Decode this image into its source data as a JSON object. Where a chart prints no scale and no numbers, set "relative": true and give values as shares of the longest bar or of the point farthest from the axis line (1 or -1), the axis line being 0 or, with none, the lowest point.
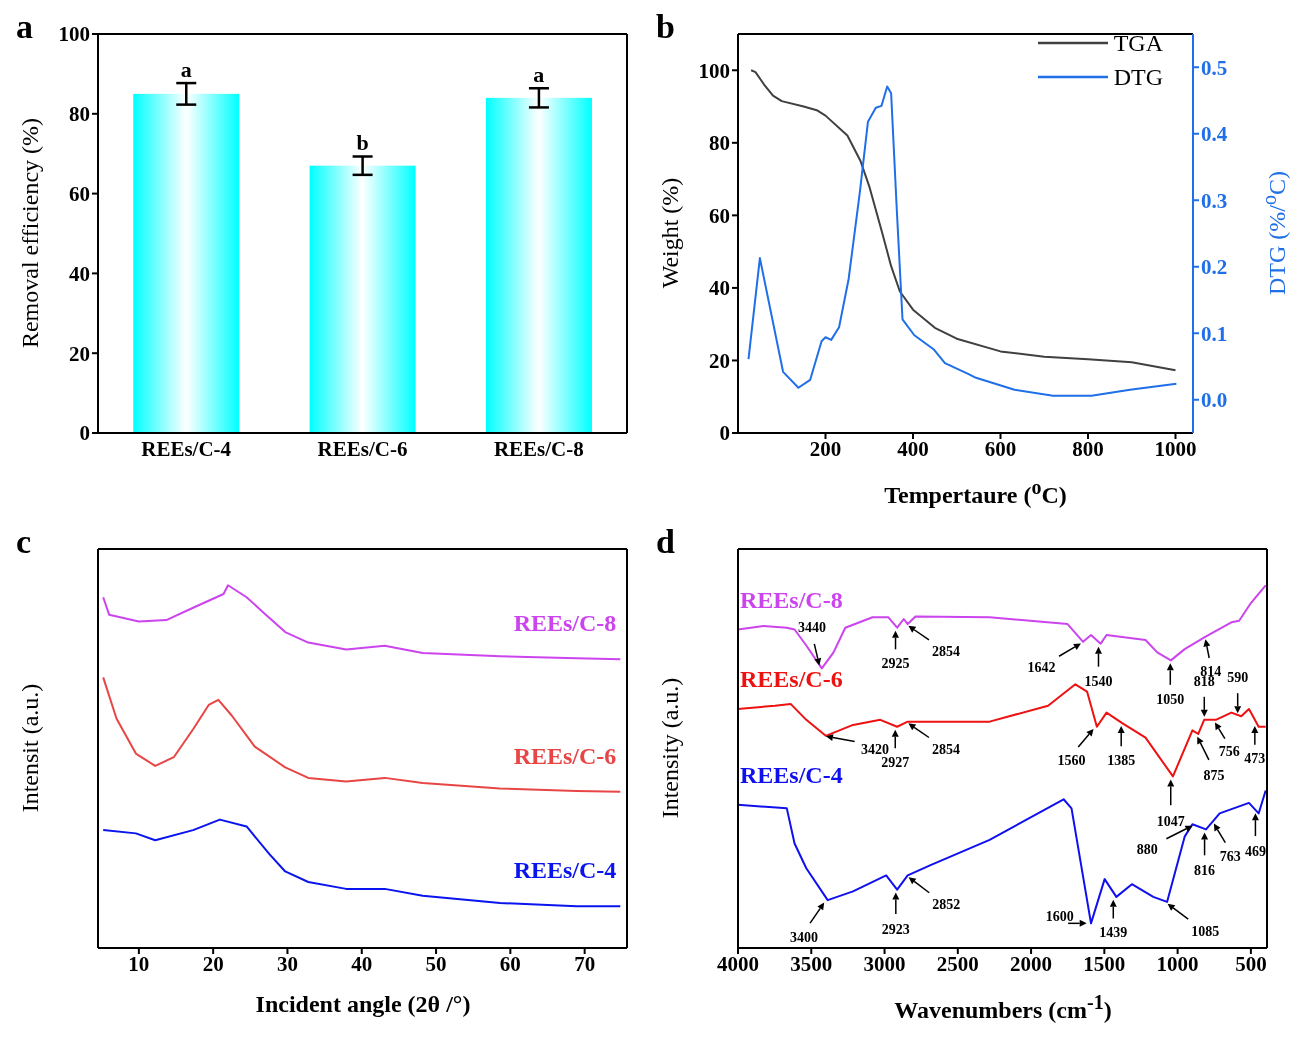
{
  "chart_data": [
    {
      "type": "bar",
      "title": "a",
      "ylabel": "Removal efficiency (%)",
      "categories": [
        "REEs/C-4",
        "REEs/C-6",
        "REEs/C-8"
      ],
      "values": [
        85,
        67,
        84
      ],
      "errors": [
        2.7,
        2.3,
        2.4
      ],
      "color": "#00ffff",
      "ylim": [
        0,
        100
      ],
      "yticks": [
        0,
        20,
        40,
        60,
        80,
        100
      ],
      "annotations": [
        {
          "text": "a",
          "x": "REEs/C-4",
          "y": 87.7
        },
        {
          "text": "b",
          "x": "REEs/C-6",
          "y": 69.3
        },
        {
          "text": "a",
          "x": "REEs/C-8",
          "y": 86.4
        }
      ]
    },
    {
      "type": "line",
      "title": "b",
      "xlabel": "Tempertaure ($^{o}$C)",
      "ylabel": "Weight (%)",
      "y2label": "DTG (%/$^{o}$C)",
      "legend": "top right",
      "xlim": [
        0,
        1040
      ],
      "xticks": [
        200,
        400,
        600,
        800,
        1000
      ],
      "ylim": [
        0,
        110
      ],
      "yticks": [
        0,
        20,
        40,
        60,
        80,
        100
      ],
      "y2lim": [
        -0.05,
        0.55
      ],
      "y2ticks": [
        {
          "value": 0,
          "label": "0.0"
        },
        0.1,
        0.2,
        0.3,
        0.4,
        0.5
      ],
      "series": [
        {
          "name": "TGA",
          "color": "#404040",
          "x": [
            30,
            40,
            60,
            80,
            100,
            150,
            180,
            200,
            250,
            280,
            300,
            330,
            350,
            370,
            400,
            450,
            500,
            600,
            700,
            800,
            900,
            1000
          ],
          "values": [
            100,
            99.5,
            96,
            93,
            91.5,
            90,
            89,
            87.5,
            82,
            75,
            68,
            55,
            46,
            39,
            34,
            29,
            26,
            22.5,
            21,
            20.3,
            19.5,
            17.3
          ]
        },
        {
          "name": "DTG",
          "color": "#1f6fe8",
          "axis": "y2",
          "x": [
            24,
            50,
            103,
            138,
            165,
            191,
            200,
            213,
            231,
            253,
            279,
            297,
            315,
            328,
            341,
            350,
            363,
            376,
            403,
            447,
            473,
            526,
            544,
            632,
            720,
            808,
            896,
            1002
          ],
          "values": [
            0.061,
            0.213,
            0.042,
            0.018,
            0.03,
            0.088,
            0.094,
            0.09,
            0.109,
            0.182,
            0.315,
            0.418,
            0.439,
            0.442,
            0.471,
            0.461,
            0.285,
            0.121,
            0.097,
            0.076,
            0.055,
            0.039,
            0.033,
            0.015,
            0.006,
            0.006,
            0.015,
            0.024
          ]
        }
      ]
    },
    {
      "type": "line",
      "title": "c",
      "xlabel": "Incident angle (2θ /°)",
      "ylabel": "Intensit (a.u.)",
      "relative": true,
      "tick_labels": "x",
      "xlim": [
        4.5,
        75.7
      ],
      "xticks": [
        10,
        20,
        30,
        40,
        50,
        60,
        70
      ],
      "series": [
        {
          "name": "REEs/C-8",
          "color": "#cc44ee",
          "x": [
            5.2,
            6,
            10,
            13.7,
            17.3,
            21.4,
            22,
            24.5,
            26.6,
            29.7,
            32.8,
            37.9,
            43.1,
            48.2,
            58.6,
            68.9,
            74.8
          ],
          "values": [
            0.967,
            0.919,
            0.9,
            0.904,
            0.938,
            0.976,
            1,
            0.967,
            0.928,
            0.871,
            0.842,
            0.823,
            0.833,
            0.813,
            0.804,
            0.799,
            0.796
          ]
        },
        {
          "name": "REEs/C-6",
          "color": "#e84545",
          "x": [
            5.2,
            7,
            9.6,
            12.2,
            14.7,
            17.3,
            19.4,
            20.7,
            22.5,
            25.6,
            29.7,
            32.8,
            37.9,
            43.1,
            48.2,
            58.6,
            68.9,
            74.8
          ],
          "values": [
            0.746,
            0.632,
            0.536,
            0.502,
            0.526,
            0.603,
            0.67,
            0.684,
            0.641,
            0.555,
            0.498,
            0.469,
            0.459,
            0.469,
            0.455,
            0.44,
            0.433,
            0.431
          ]
        },
        {
          "name": "REEs/C-4",
          "color": "#0a14ee",
          "x": [
            5.2,
            9.6,
            12.2,
            17.3,
            20.9,
            24.5,
            27.6,
            29.7,
            32.8,
            37.9,
            43.1,
            48.2,
            58.6,
            68.9,
            74.8
          ],
          "values": [
            0.325,
            0.316,
            0.297,
            0.325,
            0.354,
            0.335,
            0.258,
            0.211,
            0.182,
            0.163,
            0.163,
            0.144,
            0.124,
            0.115,
            0.115
          ]
        }
      ]
    },
    {
      "type": "line",
      "title": "d",
      "xlabel": "Wavenumbers (cm$^{-1}$)",
      "ylabel": "Intensity (a.u.)",
      "relative": true,
      "tick_labels": "x",
      "xlim": [
        4000,
        390
      ],
      "xticks": [
        4000,
        3500,
        3000,
        2500,
        2000,
        1500,
        1000,
        500
      ],
      "series": [
        {
          "name": "REEs/C-8",
          "color": "#cc44ee",
          "x": [
            4000,
            3826,
            3667,
            3614,
            3534,
            3428,
            3348,
            3268,
            3082,
            2975,
            2914,
            2869,
            2842,
            2789,
            2283,
            1751,
            1645,
            1591,
            1525,
            1485,
            1219,
            1139,
            1046,
            952,
            806,
            633,
            580,
            500,
            399
          ],
          "values": [
            0.878,
            0.888,
            0.883,
            0.878,
            0.834,
            0.771,
            0.815,
            0.883,
            0.912,
            0.912,
            0.883,
            0.907,
            0.893,
            0.914,
            0.912,
            0.893,
            0.844,
            0.863,
            0.839,
            0.863,
            0.849,
            0.815,
            0.793,
            0.824,
            0.859,
            0.898,
            0.902,
            0.951,
            1
          ]
        },
        {
          "name": "REEs/C-6",
          "color": "#ee1111",
          "x": [
            4000,
            3747,
            3641,
            3534,
            3401,
            3215,
            3029,
            2914,
            2842,
            2283,
            1884,
            1698,
            1618,
            1551,
            1485,
            1378,
            1219,
            1032,
            899,
            859,
            819,
            739,
            633,
            566,
            513,
            447,
            399
          ],
          "values": [
            0.659,
            0.668,
            0.673,
            0.629,
            0.585,
            0.615,
            0.629,
            0.61,
            0.624,
            0.624,
            0.668,
            0.727,
            0.707,
            0.61,
            0.649,
            0.62,
            0.58,
            0.473,
            0.6,
            0.59,
            0.629,
            0.629,
            0.649,
            0.639,
            0.659,
            0.61,
            0.61
          ]
        },
        {
          "name": "REEs/C-4",
          "color": "#1010ee",
          "x": [
            4000,
            3667,
            3614,
            3534,
            3388,
            3215,
            2989,
            2914,
            2842,
            2682,
            2283,
            1778,
            1724,
            1591,
            1498,
            1418,
            1312,
            1166,
            1072,
            952,
            899,
            806,
            713,
            513,
            447,
            399
          ],
          "values": [
            0.395,
            0.385,
            0.288,
            0.22,
            0.132,
            0.156,
            0.2,
            0.161,
            0.2,
            0.229,
            0.298,
            0.41,
            0.385,
            0.068,
            0.19,
            0.141,
            0.176,
            0.141,
            0.127,
            0.307,
            0.341,
            0.327,
            0.371,
            0.4,
            0.371,
            0.434
          ]
        }
      ],
      "annotations": [
        {
          "text": "3440",
          "x": 3440,
          "y": 0.771
        },
        {
          "text": "2925",
          "x": 2925,
          "y": 0.883
        },
        {
          "text": "2854",
          "x": 2854,
          "y": 0.893
        },
        {
          "text": "1642",
          "x": 1642,
          "y": 0.844
        },
        {
          "text": "1540",
          "x": 1540,
          "y": 0.839
        },
        {
          "text": "1050",
          "x": 1050,
          "y": 0.793
        },
        {
          "text": "814",
          "x": 814,
          "y": 0.859
        },
        {
          "text": "3420",
          "x": 3420,
          "y": 0.585
        },
        {
          "text": "2927",
          "x": 2927,
          "y": 0.61
        },
        {
          "text": "2854",
          "x": 2854,
          "y": 0.624
        },
        {
          "text": "1560",
          "x": 1560,
          "y": 0.61
        },
        {
          "text": "1385",
          "x": 1385,
          "y": 0.62
        },
        {
          "text": "1047",
          "x": 1047,
          "y": 0.473
        },
        {
          "text": "875",
          "x": 875,
          "y": 0.59
        },
        {
          "text": "818",
          "x": 818,
          "y": 0.629
        },
        {
          "text": "756",
          "x": 756,
          "y": 0.629
        },
        {
          "text": "590",
          "x": 590,
          "y": 0.639
        },
        {
          "text": "473",
          "x": 473,
          "y": 0.62
        },
        {
          "text": "3400",
          "x": 3400,
          "y": 0.132
        },
        {
          "text": "2923",
          "x": 2923,
          "y": 0.161
        },
        {
          "text": "2852",
          "x": 2852,
          "y": 0.2
        },
        {
          "text": "1600",
          "x": 1600,
          "y": 0.068
        },
        {
          "text": "1439",
          "x": 1439,
          "y": 0.141
        },
        {
          "text": "1085",
          "x": 1085,
          "y": 0.127
        },
        {
          "text": "880",
          "x": 880,
          "y": 0.341
        },
        {
          "text": "816",
          "x": 816,
          "y": 0.327
        },
        {
          "text": "763",
          "x": 763,
          "y": 0.35
        },
        {
          "text": "469",
          "x": 469,
          "y": 0.38
        }
      ]
    }
  ]
}
